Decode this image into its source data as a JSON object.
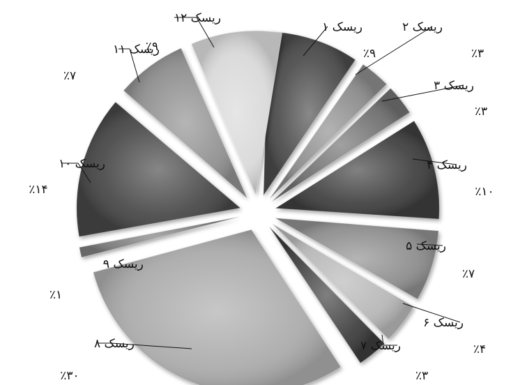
{
  "chart_data": {
    "type": "pie",
    "style": "exploded-3d-grayscale",
    "slices": [
      {
        "label": "ریسک ۱",
        "value": 9,
        "percent_label": "٪۹",
        "color": "#4a4a4a"
      },
      {
        "label": "ریسک ۲",
        "value": 3,
        "percent_label": "٪۳",
        "color": "#8a8a8a"
      },
      {
        "label": "ریسک ۳",
        "value": 3,
        "percent_label": "٪۳",
        "color": "#6e6e6e"
      },
      {
        "label": "ریسک ۴",
        "value": 10,
        "percent_label": "٪۱۰",
        "color": "#3c3c3c"
      },
      {
        "label": "ریسک ۵",
        "value": 7,
        "percent_label": "٪۷",
        "color": "#8c8c8c"
      },
      {
        "label": "ریسک ۶",
        "value": 4,
        "percent_label": "٪۴",
        "color": "#b5b5b5"
      },
      {
        "label": "ریسک ۷",
        "value": 3,
        "percent_label": "٪۳",
        "color": "#3a3a3a"
      },
      {
        "label": "ریسک ۸",
        "value": 30,
        "percent_label": "٪۳۰",
        "color": "#a9a9a9"
      },
      {
        "label": "ریسک ۹",
        "value": 1,
        "percent_label": "٪۱",
        "color": "#7a7a7a"
      },
      {
        "label": "ریسک ۱۰",
        "value": 14,
        "percent_label": "٪۱۴",
        "color": "#454545"
      },
      {
        "label": "ریسک ۱۱",
        "value": 7,
        "percent_label": "٪۷",
        "color": "#8e8e8e"
      },
      {
        "label": "ریسک ۱۲",
        "value": 9,
        "percent_label": "٪۹",
        "color": "#d8d8d8"
      }
    ]
  }
}
